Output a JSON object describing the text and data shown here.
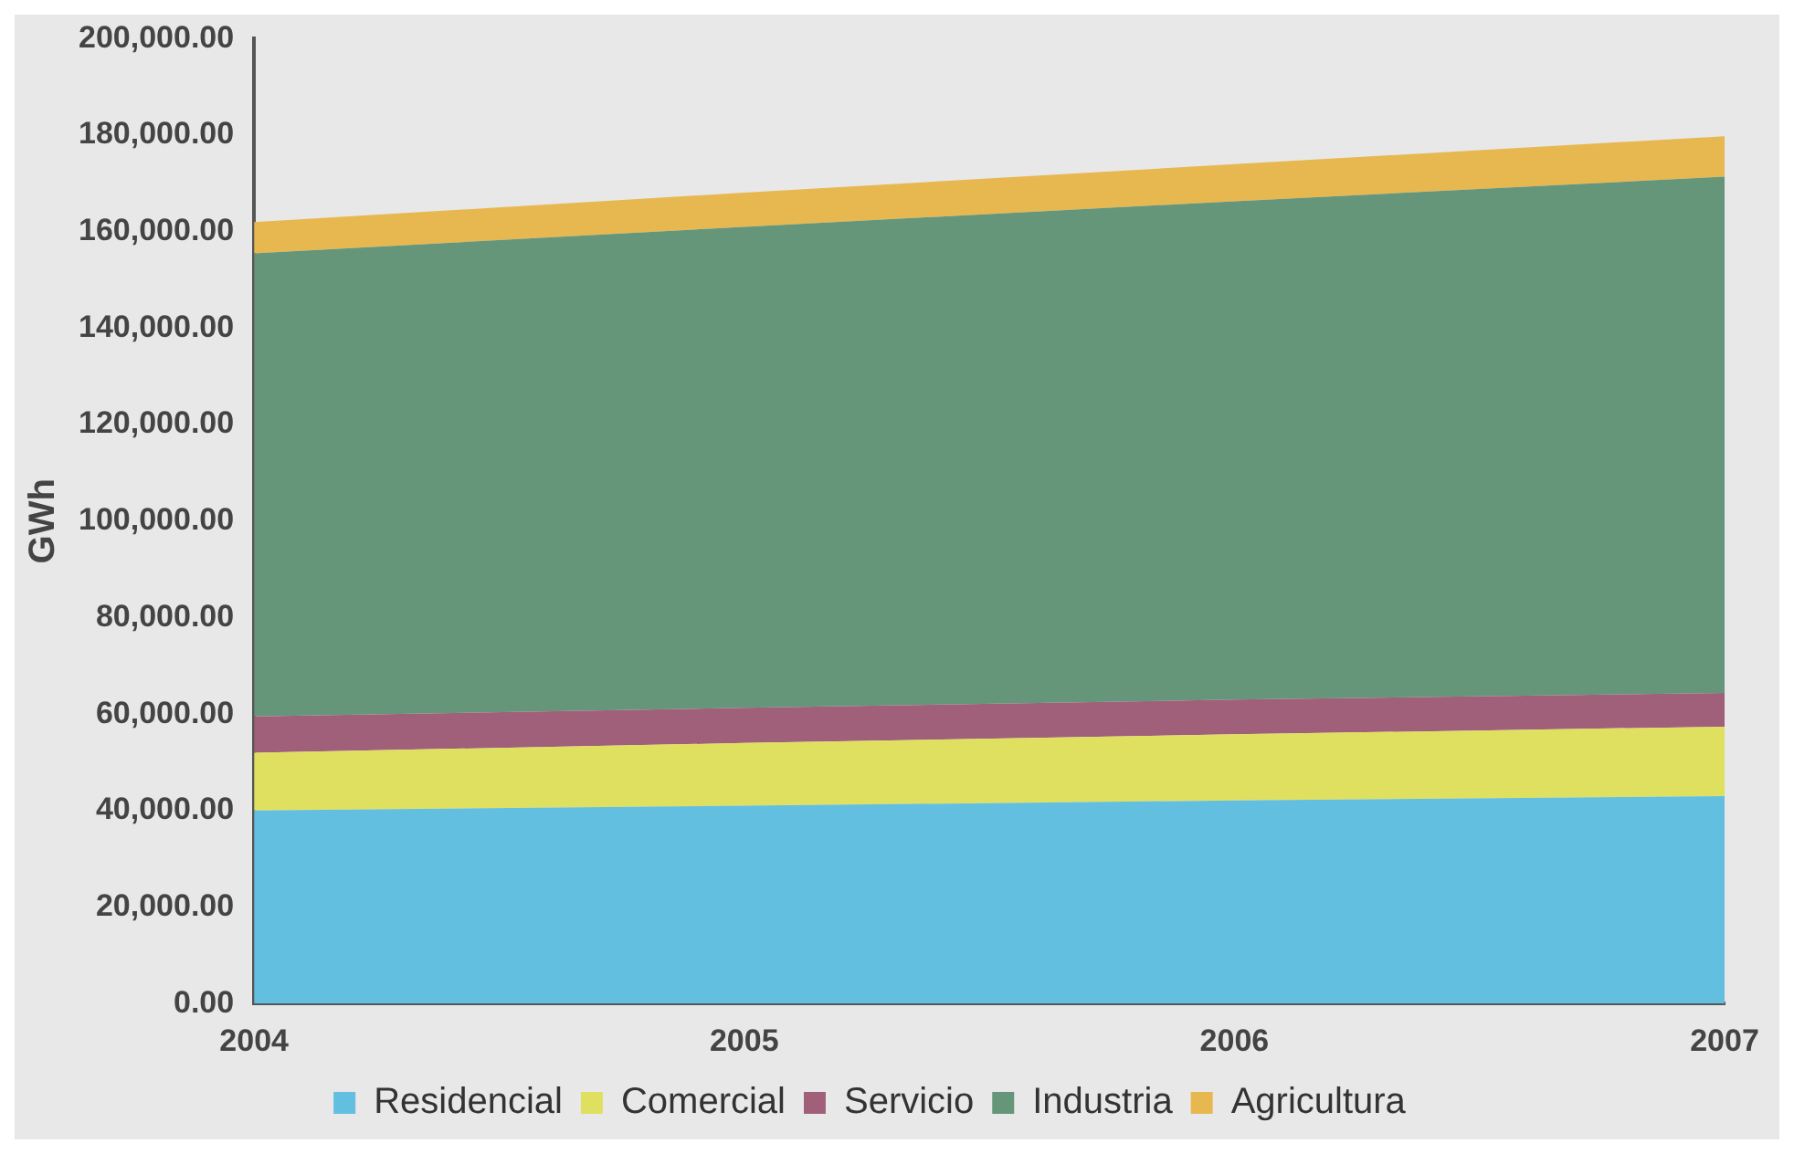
{
  "chart_data": {
    "type": "area",
    "stacked": true,
    "ylabel": "GWh",
    "x": [
      2004,
      2005,
      2006,
      2007
    ],
    "xlim": [
      2004,
      2007
    ],
    "xticks": [
      2004,
      2005,
      2006,
      2007
    ],
    "ylim": [
      0,
      200000
    ],
    "yticks": [
      {
        "value": 0,
        "label": "0.00"
      },
      {
        "value": 20000,
        "label": "20,000.00"
      },
      {
        "value": 40000,
        "label": "40,000.00"
      },
      {
        "value": 60000,
        "label": "60,000.00"
      },
      {
        "value": 80000,
        "label": "80,000.00"
      },
      {
        "value": 100000,
        "label": "100,000.00"
      },
      {
        "value": 120000,
        "label": "120,000.00"
      },
      {
        "value": 140000,
        "label": "140,000.00"
      },
      {
        "value": 160000,
        "label": "160,000.00"
      },
      {
        "value": 180000,
        "label": "180,000.00"
      },
      {
        "value": 200000,
        "label": "200,000.00"
      }
    ],
    "legend": "bottom",
    "grid": false,
    "series": [
      {
        "name": "Residencial",
        "color": "#62bfe0",
        "values": [
          40000,
          41000,
          42100,
          43000
        ]
      },
      {
        "name": "Comercial",
        "color": "#e0e060",
        "values": [
          12000,
          13000,
          13700,
          14400
        ]
      },
      {
        "name": "Servicio",
        "color": "#a0607a",
        "values": [
          7500,
          7300,
          7200,
          7000
        ]
      },
      {
        "name": "Industria",
        "color": "#66967a",
        "values": [
          96000,
          99700,
          103300,
          107000
        ]
      },
      {
        "name": "Agricultura",
        "color": "#e8b850",
        "values": [
          6500,
          7100,
          7700,
          8400
        ]
      }
    ]
  }
}
